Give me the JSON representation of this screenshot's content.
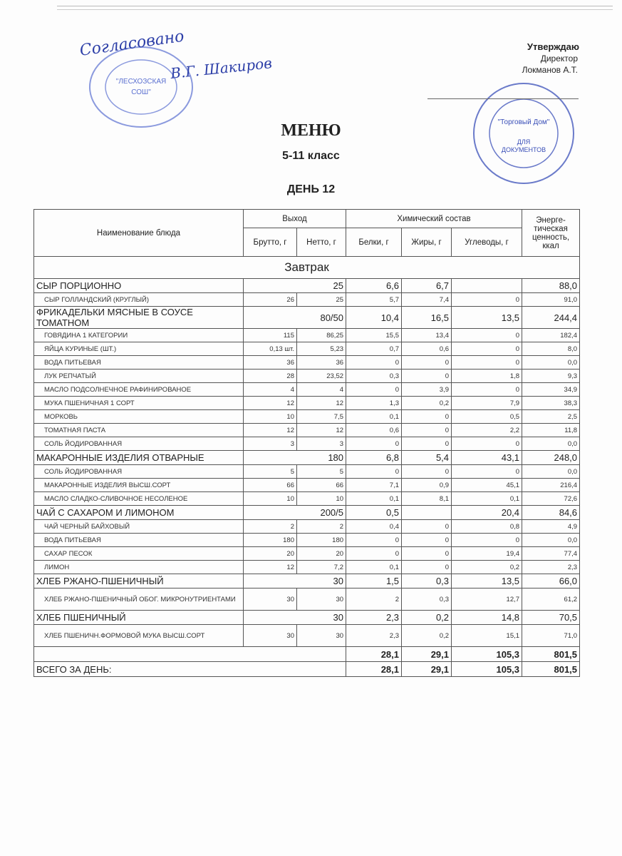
{
  "approval": {
    "label": "Утверждаю",
    "position": "Директор",
    "name": "Локманов А.Т."
  },
  "handwriting": {
    "agreed": "Согласовано",
    "signature": "В.Г. Шакиров"
  },
  "stamps": {
    "left": "МБОУ \"ЛЕСХОЗСКАЯ СОШ\"",
    "right": "ООО \"Торговый Дом\" ДЛЯ ДОКУМЕНТОВ"
  },
  "title": "МЕНЮ",
  "grade": "5-11 класс",
  "day": "ДЕНЬ 12",
  "headers": {
    "name": "Наименование блюда",
    "output": "Выход",
    "chem": "Химический состав",
    "energy": "Энерге-тическая ценность, ккал",
    "brutto": "Брутто, г",
    "netto": "Нетто, г",
    "protein": "Белки, г",
    "fat": "Жиры, г",
    "carbs": "Углеводы, г"
  },
  "section": "Завтрак",
  "rows": [
    {
      "type": "main",
      "name": "СЫР ПОРЦИОННО",
      "netto": "25",
      "p": "6,6",
      "f": "6,7",
      "c": "",
      "e": "88,0"
    },
    {
      "type": "sub",
      "name": "СЫР ГОЛЛАНДСКИЙ (КРУГЛЫЙ)",
      "brutto": "26",
      "netto": "25",
      "p": "5,7",
      "f": "7,4",
      "c": "0",
      "e": "91,0"
    },
    {
      "type": "main two",
      "name": "ФРИКАДЕЛЬКИ МЯСНЫЕ В СОУСЕ ТОМАТНОМ",
      "netto": "80/50",
      "p": "10,4",
      "f": "16,5",
      "c": "13,5",
      "e": "244,4"
    },
    {
      "type": "sub",
      "name": "ГОВЯДИНА 1 КАТЕГОРИИ",
      "brutto": "115",
      "netto": "86,25",
      "p": "15,5",
      "f": "13,4",
      "c": "0",
      "e": "182,4"
    },
    {
      "type": "sub",
      "name": "ЯЙЦА КУРИНЫЕ (ШТ.)",
      "brutto": "0,13 шт.",
      "netto": "5,23",
      "p": "0,7",
      "f": "0,6",
      "c": "0",
      "e": "8,0"
    },
    {
      "type": "sub",
      "name": "ВОДА ПИТЬЕВАЯ",
      "brutto": "36",
      "netto": "36",
      "p": "0",
      "f": "0",
      "c": "0",
      "e": "0,0"
    },
    {
      "type": "sub",
      "name": "ЛУК РЕПЧАТЫЙ",
      "brutto": "28",
      "netto": "23,52",
      "p": "0,3",
      "f": "0",
      "c": "1,8",
      "e": "9,3"
    },
    {
      "type": "sub",
      "name": "МАСЛО ПОДСОЛНЕЧНОЕ РАФИНИРОВАНОЕ",
      "brutto": "4",
      "netto": "4",
      "p": "0",
      "f": "3,9",
      "c": "0",
      "e": "34,9"
    },
    {
      "type": "sub",
      "name": "МУКА ПШЕНИЧНАЯ 1 СОРТ",
      "brutto": "12",
      "netto": "12",
      "p": "1,3",
      "f": "0,2",
      "c": "7,9",
      "e": "38,3"
    },
    {
      "type": "sub",
      "name": "МОРКОВЬ",
      "brutto": "10",
      "netto": "7,5",
      "p": "0,1",
      "f": "0",
      "c": "0,5",
      "e": "2,5"
    },
    {
      "type": "sub",
      "name": "ТОМАТНАЯ ПАСТА",
      "brutto": "12",
      "netto": "12",
      "p": "0,6",
      "f": "0",
      "c": "2,2",
      "e": "11,8"
    },
    {
      "type": "sub",
      "name": "СОЛЬ ЙОДИРОВАННАЯ",
      "brutto": "3",
      "netto": "3",
      "p": "0",
      "f": "0",
      "c": "0",
      "e": "0,0"
    },
    {
      "type": "main",
      "name": "МАКАРОННЫЕ ИЗДЕЛИЯ ОТВАРНЫЕ",
      "netto": "180",
      "p": "6,8",
      "f": "5,4",
      "c": "43,1",
      "e": "248,0"
    },
    {
      "type": "sub",
      "name": "СОЛЬ ЙОДИРОВАННАЯ",
      "brutto": "5",
      "netto": "5",
      "p": "0",
      "f": "0",
      "c": "0",
      "e": "0,0"
    },
    {
      "type": "sub",
      "name": "МАКАРОННЫЕ ИЗДЕЛИЯ ВЫСШ.СОРТ",
      "brutto": "66",
      "netto": "66",
      "p": "7,1",
      "f": "0,9",
      "c": "45,1",
      "e": "216,4"
    },
    {
      "type": "sub",
      "name": "МАСЛО СЛАДКО-СЛИВОЧНОЕ НЕСОЛЕНОЕ",
      "brutto": "10",
      "netto": "10",
      "p": "0,1",
      "f": "8,1",
      "c": "0,1",
      "e": "72,6"
    },
    {
      "type": "main",
      "name": "ЧАЙ С САХАРОМ И ЛИМОНОМ",
      "netto": "200/5",
      "p": "0,5",
      "f": "",
      "c": "20,4",
      "e": "84,6"
    },
    {
      "type": "sub",
      "name": "ЧАЙ ЧЕРНЫЙ БАЙХОВЫЙ",
      "brutto": "2",
      "netto": "2",
      "p": "0,4",
      "f": "0",
      "c": "0,8",
      "e": "4,9"
    },
    {
      "type": "sub",
      "name": "ВОДА ПИТЬЕВАЯ",
      "brutto": "180",
      "netto": "180",
      "p": "0",
      "f": "0",
      "c": "0",
      "e": "0,0"
    },
    {
      "type": "sub",
      "name": "САХАР ПЕСОК",
      "brutto": "20",
      "netto": "20",
      "p": "0",
      "f": "0",
      "c": "19,4",
      "e": "77,4"
    },
    {
      "type": "sub",
      "name": "ЛИМОН",
      "brutto": "12",
      "netto": "7,2",
      "p": "0,1",
      "f": "0",
      "c": "0,2",
      "e": "2,3"
    },
    {
      "type": "main",
      "name": "ХЛЕБ РЖАНО-ПШЕНИЧНЫЙ",
      "netto": "30",
      "p": "1,5",
      "f": "0,3",
      "c": "13,5",
      "e": "66,0"
    },
    {
      "type": "sub two",
      "name": "ХЛЕБ РЖАНО-ПШЕНИЧНЫЙ ОБОГ. МИКРОНУТРИЕНТАМИ",
      "brutto": "30",
      "netto": "30",
      "p": "2",
      "f": "0,3",
      "c": "12,7",
      "e": "61,2"
    },
    {
      "type": "main",
      "name": "ХЛЕБ ПШЕНИЧНЫЙ",
      "netto": "30",
      "p": "2,3",
      "f": "0,2",
      "c": "14,8",
      "e": "70,5"
    },
    {
      "type": "sub two",
      "name": "ХЛЕБ ПШЕНИЧН.ФОРМОВОЙ МУКА ВЫСШ.СОРТ",
      "brutto": "30",
      "netto": "30",
      "p": "2,3",
      "f": "0,2",
      "c": "15,1",
      "e": "71,0"
    }
  ],
  "subtotal": {
    "label": "",
    "p": "28,1",
    "f": "29,1",
    "c": "105,3",
    "e": "801,5"
  },
  "total": {
    "label": "ВСЕГО ЗА ДЕНЬ:",
    "p": "28,1",
    "f": "29,1",
    "c": "105,3",
    "e": "801,5"
  },
  "colors": {
    "stamp": "#3a4fb8",
    "ink": "#222222"
  }
}
